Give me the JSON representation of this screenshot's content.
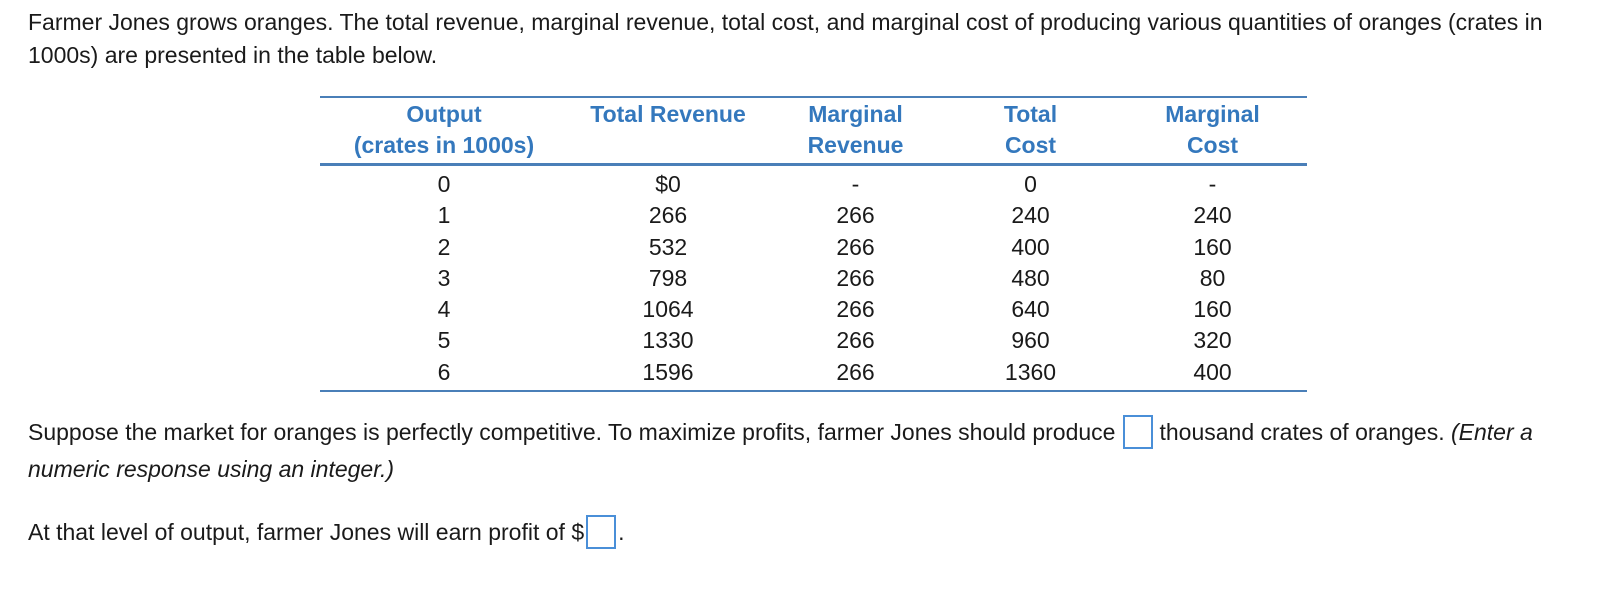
{
  "intro": "Farmer Jones grows oranges.  The total revenue, marginal revenue, total cost, and marginal cost of producing various quantities of oranges (crates in 1000s) are presented in the table below.",
  "table": {
    "headers": [
      {
        "line1": "Output",
        "line2": "(crates in 1000s)"
      },
      {
        "line1": "Total Revenue",
        "line2": ""
      },
      {
        "line1": "Marginal",
        "line2": "Revenue"
      },
      {
        "line1": "Total",
        "line2": "Cost"
      },
      {
        "line1": "Marginal",
        "line2": "Cost"
      }
    ],
    "rows": [
      [
        "0",
        "$0",
        "-",
        "0",
        "-"
      ],
      [
        "1",
        "266",
        "266",
        "240",
        "240"
      ],
      [
        "2",
        "532",
        "266",
        "400",
        "160"
      ],
      [
        "3",
        "798",
        "266",
        "480",
        "80"
      ],
      [
        "4",
        "1064",
        "266",
        "640",
        "160"
      ],
      [
        "5",
        "1330",
        "266",
        "960",
        "320"
      ],
      [
        "6",
        "1596",
        "266",
        "1360",
        "400"
      ]
    ]
  },
  "question1": {
    "before": "Suppose the market for oranges is perfectly competitive.  To maximize profits, farmer Jones should produce",
    "after": "thousand crates of oranges.",
    "hint": "(Enter a numeric response using an integer.)",
    "answer_value": ""
  },
  "question2": {
    "before": "At that level of output, farmer Jones will earn profit of $",
    "after": ".",
    "answer_value": ""
  }
}
